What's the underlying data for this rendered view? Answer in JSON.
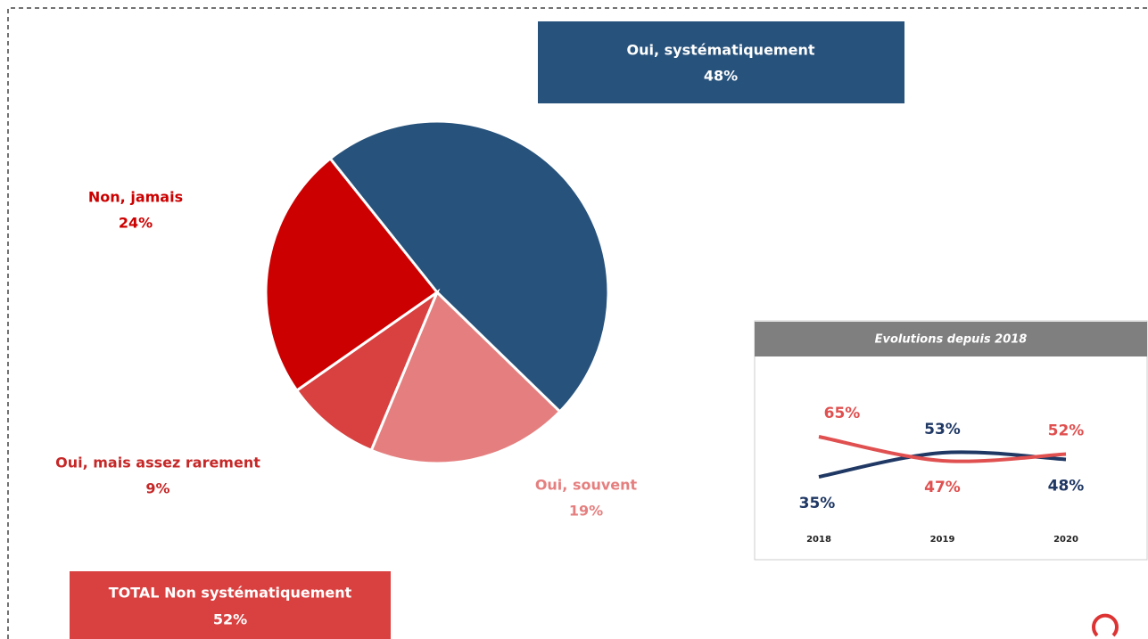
{
  "chart_data": [
    {
      "type": "pie",
      "categories": [
        "Oui, systématiquement",
        "Oui, souvent",
        "Oui, mais assez rarement",
        "Non, jamais"
      ],
      "values": [
        48,
        19,
        9,
        24
      ],
      "value_labels": [
        "48%",
        "19%",
        "9%",
        "24%"
      ],
      "colors": [
        "#27527b",
        "#e57f7f",
        "#d94040",
        "#cc0000"
      ],
      "annotations": [
        {
          "text": "TOTAL Non systématiquement",
          "value": 52,
          "label": "52%"
        }
      ]
    },
    {
      "type": "line",
      "title": "Evolutions depuis 2018",
      "categories": [
        "2018",
        "2019",
        "2020"
      ],
      "series": [
        {
          "color": "#1f3864",
          "values": [
            35,
            53,
            48
          ],
          "value_labels": [
            "35%",
            "53%",
            "48%"
          ]
        },
        {
          "color": "#e05050",
          "values": [
            65,
            47,
            52
          ],
          "value_labels": [
            "65%",
            "47%",
            "52%"
          ]
        }
      ]
    }
  ]
}
